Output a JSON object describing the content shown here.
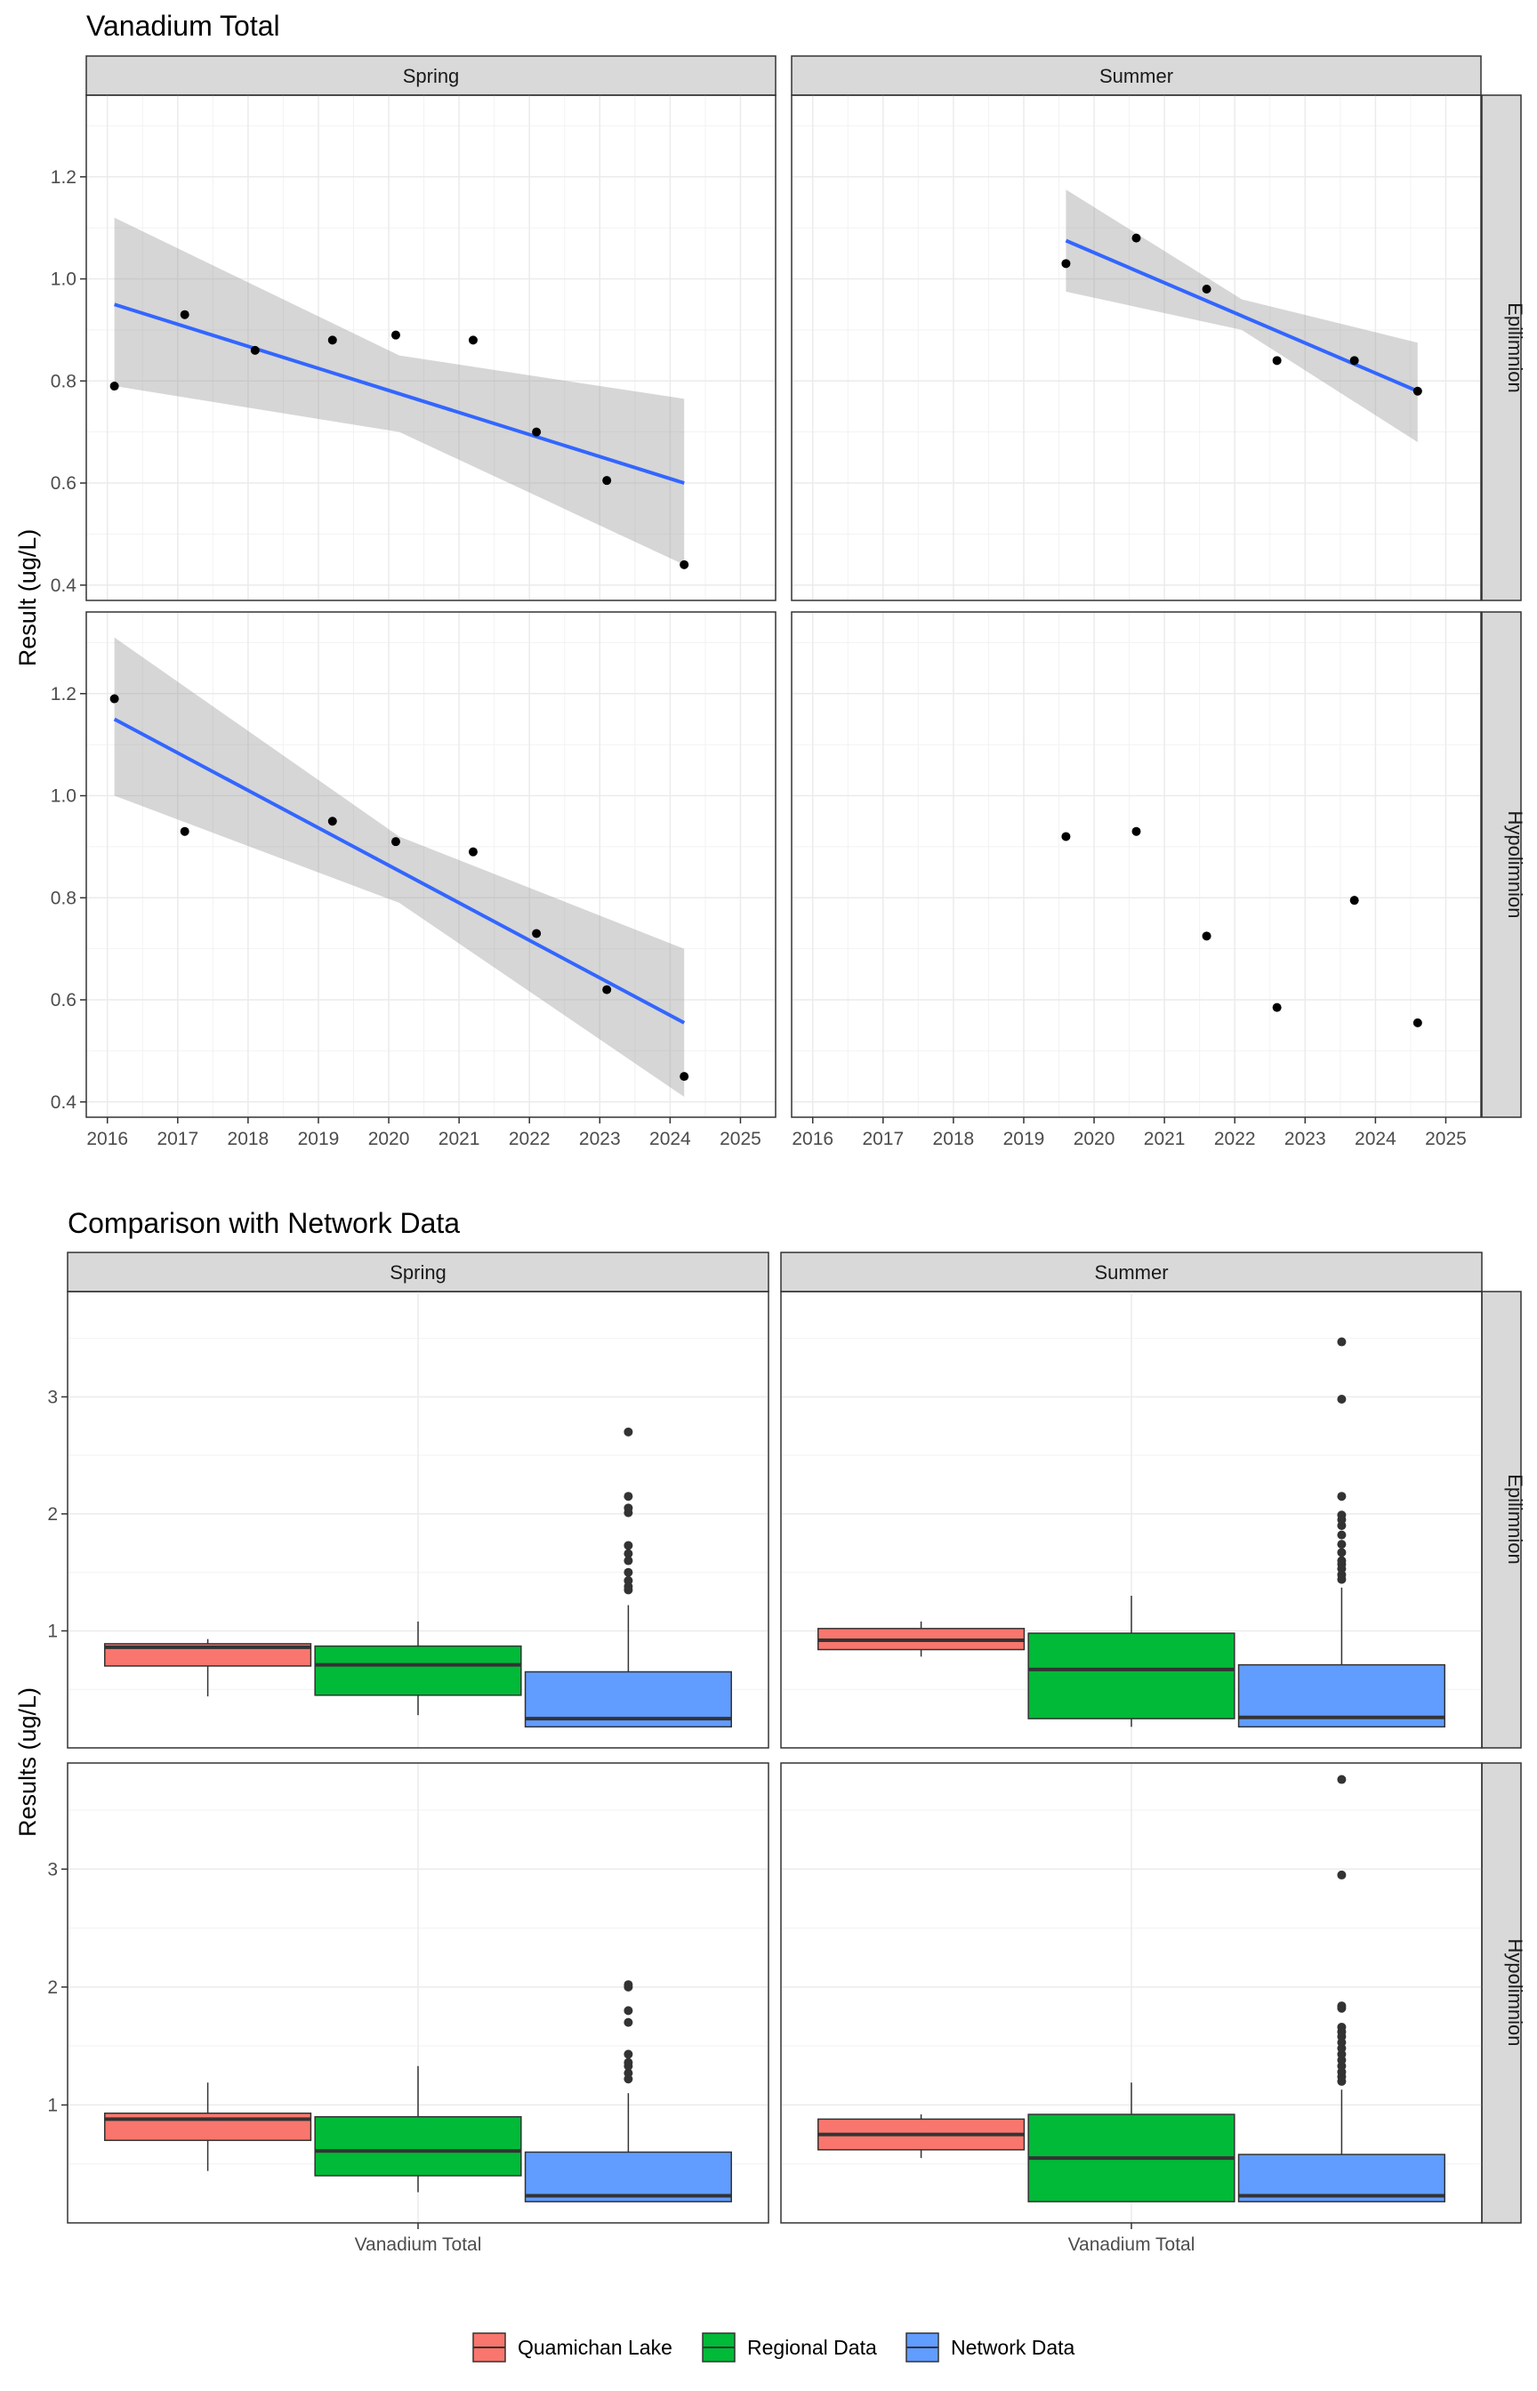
{
  "chart_data": [
    {
      "type": "scatter",
      "title": "Vanadium Total",
      "ylabel": "Result (ug/L)",
      "xlabel": "",
      "facet_cols": [
        "Spring",
        "Summer"
      ],
      "facet_rows": [
        "Epilimnion",
        "Hypolimnion"
      ],
      "xlim": [
        2015.7,
        2025.5
      ],
      "ylim": [
        0.37,
        1.36
      ],
      "x_ticks": [
        2016,
        2017,
        2018,
        2019,
        2020,
        2021,
        2022,
        2023,
        2024,
        2025
      ],
      "y_ticks": [
        0.4,
        0.6,
        0.8,
        1.0,
        1.2
      ],
      "y_tick_labels": [
        "0.4",
        "0.6",
        "0.8",
        "1.0",
        "1.2"
      ],
      "grid": true,
      "colors": {
        "point": "#000000",
        "trend": "#3366FF",
        "band": "#999999"
      },
      "panels": [
        {
          "col": "Spring",
          "row": "Epilimnion",
          "points": [
            [
              2016.1,
              0.79
            ],
            [
              2017.1,
              0.93
            ],
            [
              2018.1,
              0.86
            ],
            [
              2019.2,
              0.88
            ],
            [
              2020.1,
              0.89
            ],
            [
              2021.2,
              0.88
            ],
            [
              2022.1,
              0.7
            ],
            [
              2023.1,
              0.605
            ],
            [
              2024.2,
              0.44
            ]
          ],
          "trend": {
            "x": [
              2016.1,
              2024.2
            ],
            "y": [
              0.95,
              0.6
            ]
          },
          "band": {
            "x": [
              2016.1,
              2020.15,
              2024.2
            ],
            "lower": [
              0.79,
              0.7,
              0.44
            ],
            "upper": [
              1.12,
              0.85,
              0.765
            ]
          }
        },
        {
          "col": "Summer",
          "row": "Epilimnion",
          "points": [
            [
              2019.6,
              1.03
            ],
            [
              2020.6,
              1.08
            ],
            [
              2021.6,
              0.98
            ],
            [
              2022.6,
              0.84
            ],
            [
              2023.7,
              0.84
            ],
            [
              2024.6,
              0.78
            ]
          ],
          "trend": {
            "x": [
              2019.6,
              2024.6
            ],
            "y": [
              1.075,
              0.78
            ]
          },
          "band": {
            "x": [
              2019.6,
              2022.1,
              2024.6
            ],
            "lower": [
              0.975,
              0.9,
              0.68
            ],
            "upper": [
              1.175,
              0.96,
              0.875
            ]
          }
        },
        {
          "col": "Spring",
          "row": "Hypolimnion",
          "points": [
            [
              2016.1,
              1.19
            ],
            [
              2017.1,
              0.93
            ],
            [
              2019.2,
              0.95
            ],
            [
              2020.1,
              0.91
            ],
            [
              2021.2,
              0.89
            ],
            [
              2022.1,
              0.73
            ],
            [
              2023.1,
              0.62
            ],
            [
              2024.2,
              0.45
            ]
          ],
          "trend": {
            "x": [
              2016.1,
              2024.2
            ],
            "y": [
              1.15,
              0.555
            ]
          },
          "band": {
            "x": [
              2016.1,
              2020.15,
              2024.2
            ],
            "lower": [
              1.0,
              0.79,
              0.41
            ],
            "upper": [
              1.31,
              0.92,
              0.7
            ]
          }
        },
        {
          "col": "Summer",
          "row": "Hypolimnion",
          "points": [
            [
              2019.6,
              0.92
            ],
            [
              2020.6,
              0.93
            ],
            [
              2021.6,
              0.725
            ],
            [
              2022.6,
              0.585
            ],
            [
              2023.7,
              0.795
            ],
            [
              2024.6,
              0.555
            ]
          ],
          "trend": null,
          "band": null
        }
      ]
    },
    {
      "type": "box",
      "title": "Comparison with Network Data",
      "ylabel": "Results (ug/L)",
      "category": "Vanadium Total",
      "facet_cols": [
        "Spring",
        "Summer"
      ],
      "facet_rows": [
        "Epilimnion",
        "Hypolimnion"
      ],
      "ylim": [
        0.0,
        3.9
      ],
      "y_ticks": [
        1,
        2,
        3
      ],
      "y_tick_labels": [
        "1",
        "2",
        "3"
      ],
      "grid": true,
      "legend": {
        "position": "bottom",
        "entries": [
          {
            "name": "Quamichan Lake",
            "color": "#F8766D"
          },
          {
            "name": "Regional Data",
            "color": "#00BA38"
          },
          {
            "name": "Network Data",
            "color": "#619CFF"
          }
        ]
      },
      "panels": [
        {
          "col": "Spring",
          "row": "Epilimnion",
          "boxes": [
            {
              "group": "Quamichan Lake",
              "min": 0.44,
              "q1": 0.7,
              "median": 0.86,
              "q3": 0.89,
              "max": 0.93,
              "outliers": []
            },
            {
              "group": "Regional Data",
              "min": 0.28,
              "q1": 0.45,
              "median": 0.71,
              "q3": 0.87,
              "max": 1.08,
              "outliers": []
            },
            {
              "group": "Network Data",
              "min": 0.18,
              "q1": 0.18,
              "median": 0.25,
              "q3": 0.65,
              "max": 1.22,
              "outliers": [
                1.35,
                1.38,
                1.43,
                1.5,
                1.6,
                1.66,
                1.73,
                2.01,
                2.05,
                2.15,
                2.7
              ]
            }
          ]
        },
        {
          "col": "Summer",
          "row": "Epilimnion",
          "boxes": [
            {
              "group": "Quamichan Lake",
              "min": 0.78,
              "q1": 0.84,
              "median": 0.92,
              "q3": 1.02,
              "max": 1.08,
              "outliers": []
            },
            {
              "group": "Regional Data",
              "min": 0.18,
              "q1": 0.25,
              "median": 0.67,
              "q3": 0.98,
              "max": 1.3,
              "outliers": []
            },
            {
              "group": "Network Data",
              "min": 0.18,
              "q1": 0.18,
              "median": 0.26,
              "q3": 0.71,
              "max": 1.37,
              "outliers": [
                1.44,
                1.48,
                1.53,
                1.57,
                1.6,
                1.67,
                1.74,
                1.82,
                1.9,
                1.95,
                1.99,
                2.15,
                2.98,
                3.47
              ]
            }
          ]
        },
        {
          "col": "Spring",
          "row": "Hypolimnion",
          "boxes": [
            {
              "group": "Quamichan Lake",
              "min": 0.44,
              "q1": 0.7,
              "median": 0.88,
              "q3": 0.93,
              "max": 1.19,
              "outliers": []
            },
            {
              "group": "Regional Data",
              "min": 0.26,
              "q1": 0.4,
              "median": 0.61,
              "q3": 0.9,
              "max": 1.33,
              "outliers": []
            },
            {
              "group": "Network Data",
              "min": 0.18,
              "q1": 0.18,
              "median": 0.23,
              "q3": 0.6,
              "max": 1.1,
              "outliers": [
                1.22,
                1.27,
                1.33,
                1.36,
                1.43,
                1.7,
                1.8,
                2.0,
                2.02
              ]
            }
          ]
        },
        {
          "col": "Summer",
          "row": "Hypolimnion",
          "boxes": [
            {
              "group": "Quamichan Lake",
              "min": 0.55,
              "q1": 0.62,
              "median": 0.75,
              "q3": 0.88,
              "max": 0.92,
              "outliers": []
            },
            {
              "group": "Regional Data",
              "min": 0.18,
              "q1": 0.18,
              "median": 0.55,
              "q3": 0.92,
              "max": 1.19,
              "outliers": []
            },
            {
              "group": "Network Data",
              "min": 0.18,
              "q1": 0.18,
              "median": 0.23,
              "q3": 0.58,
              "max": 1.13,
              "outliers": [
                1.2,
                1.24,
                1.28,
                1.33,
                1.38,
                1.43,
                1.48,
                1.53,
                1.58,
                1.62,
                1.66,
                1.82,
                1.84,
                2.95,
                3.76
              ]
            }
          ]
        }
      ]
    }
  ]
}
